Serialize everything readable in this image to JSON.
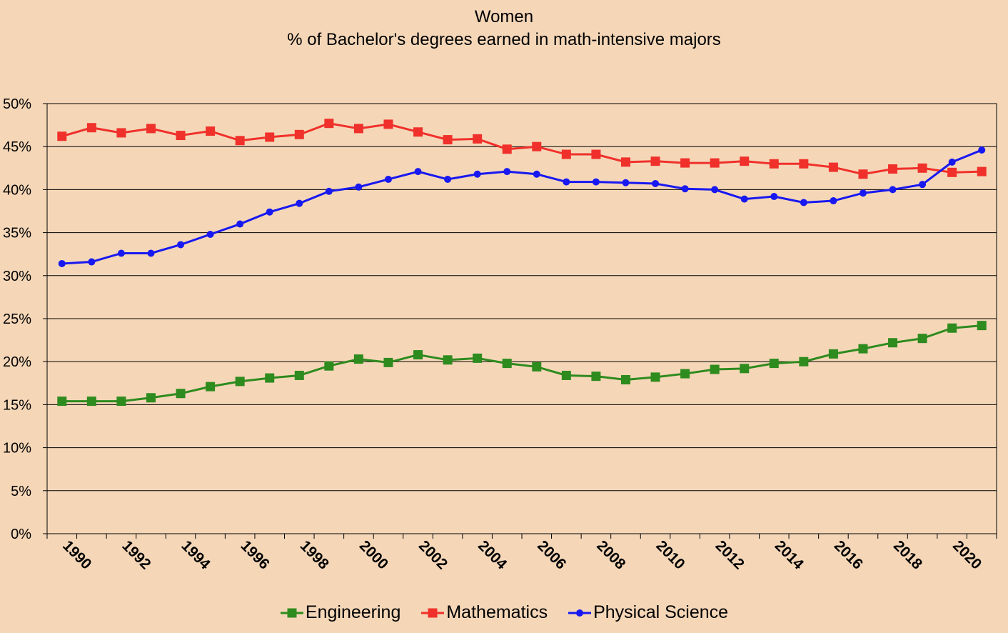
{
  "chart_data": {
    "type": "line",
    "title": "Women",
    "subtitle": "% of Bachelor's degrees earned in math-intensive majors",
    "xlabel": "",
    "ylabel": "",
    "x": [
      1990,
      1991,
      1992,
      1993,
      1994,
      1995,
      1996,
      1997,
      1998,
      1999,
      2000,
      2001,
      2002,
      2003,
      2004,
      2005,
      2006,
      2007,
      2008,
      2009,
      2010,
      2011,
      2012,
      2013,
      2014,
      2015,
      2016,
      2017,
      2018,
      2019,
      2020,
      2021
    ],
    "x_tick_labels": [
      "1990",
      "1992",
      "1994",
      "1996",
      "1998",
      "2000",
      "2002",
      "2004",
      "2006",
      "2008",
      "2010",
      "2012",
      "2014",
      "2016",
      "2018",
      "2020"
    ],
    "y_tick_labels": [
      "0%",
      "5%",
      "10%",
      "15%",
      "20%",
      "25%",
      "30%",
      "35%",
      "40%",
      "45%",
      "50%"
    ],
    "ylim": [
      0,
      50
    ],
    "grid": "horizontal",
    "legend_position": "bottom",
    "series": [
      {
        "name": "Engineering",
        "color": "#2e8b1e",
        "marker": "square",
        "values": [
          15.4,
          15.4,
          15.4,
          15.8,
          16.3,
          17.1,
          17.7,
          18.1,
          18.4,
          19.5,
          20.3,
          19.9,
          20.8,
          20.2,
          20.4,
          19.8,
          19.4,
          18.4,
          18.3,
          17.9,
          18.2,
          18.6,
          19.1,
          19.2,
          19.8,
          20.0,
          20.9,
          21.5,
          22.2,
          22.7,
          23.9,
          24.2
        ]
      },
      {
        "name": "Mathematics",
        "color": "#f0302a",
        "marker": "square",
        "values": [
          46.2,
          47.2,
          46.6,
          47.1,
          46.3,
          46.8,
          45.7,
          46.1,
          46.4,
          47.7,
          47.1,
          47.6,
          46.7,
          45.8,
          45.9,
          44.7,
          45.0,
          44.1,
          44.1,
          43.2,
          43.3,
          43.1,
          43.1,
          43.3,
          43.0,
          43.0,
          42.6,
          41.8,
          42.4,
          42.5,
          42.0,
          42.1
        ]
      },
      {
        "name": "Physical Science",
        "color": "#1818f0",
        "marker": "circle",
        "values": [
          31.4,
          31.6,
          32.6,
          32.6,
          33.6,
          34.8,
          36.0,
          37.4,
          38.4,
          39.8,
          40.3,
          41.2,
          42.1,
          41.2,
          41.8,
          42.1,
          41.8,
          40.9,
          40.9,
          40.8,
          40.7,
          40.1,
          40.0,
          38.9,
          39.2,
          38.5,
          38.7,
          39.6,
          40.0,
          40.6,
          43.2,
          44.6
        ]
      }
    ]
  }
}
